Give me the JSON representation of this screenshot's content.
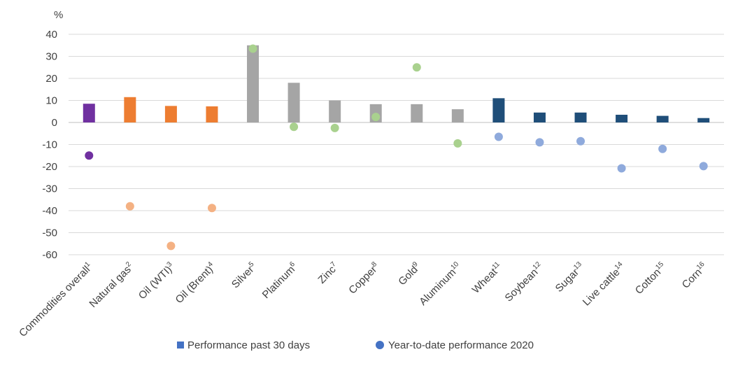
{
  "chart_data": {
    "type": "bar",
    "unit": "%",
    "ylim": [
      -60,
      40
    ],
    "ytick_step": 10,
    "grid": true,
    "legend_position": "bottom",
    "categories": [
      {
        "name": "Commodities overall",
        "sup": "1",
        "bar": 8.5,
        "dot": -15,
        "bar_color": "#7030a0",
        "dot_color": "#7030a0"
      },
      {
        "name": "Natural gas",
        "sup": "2",
        "bar": 11.5,
        "dot": -38,
        "bar_color": "#ed7d31",
        "dot_color": "#f4b183"
      },
      {
        "name": "Oil (WTI)",
        "sup": "3",
        "bar": 7.5,
        "dot": -56,
        "bar_color": "#ed7d31",
        "dot_color": "#f4b183"
      },
      {
        "name": "Oil (Brent)",
        "sup": "4",
        "bar": 7.3,
        "dot": -38.8,
        "bar_color": "#ed7d31",
        "dot_color": "#f4b183"
      },
      {
        "name": "Silver",
        "sup": "5",
        "bar": 35,
        "dot": 33.5,
        "bar_color": "#a5a5a5",
        "dot_color": "#a9d18e"
      },
      {
        "name": "Platinum",
        "sup": "6",
        "bar": 18,
        "dot": -2,
        "bar_color": "#a5a5a5",
        "dot_color": "#a9d18e"
      },
      {
        "name": "Zinc",
        "sup": "7",
        "bar": 10,
        "dot": -2.5,
        "bar_color": "#a5a5a5",
        "dot_color": "#a9d18e"
      },
      {
        "name": "Copper",
        "sup": "8",
        "bar": 8.3,
        "dot": 2.5,
        "bar_color": "#a5a5a5",
        "dot_color": "#a9d18e"
      },
      {
        "name": "Gold",
        "sup": "9",
        "bar": 8.3,
        "dot": 25,
        "bar_color": "#a5a5a5",
        "dot_color": "#a9d18e"
      },
      {
        "name": "Aluminum",
        "sup": "10",
        "bar": 6,
        "dot": -9.5,
        "bar_color": "#a5a5a5",
        "dot_color": "#a9d18e"
      },
      {
        "name": "Wheat",
        "sup": "11",
        "bar": 11,
        "dot": -6.5,
        "bar_color": "#1f4e79",
        "dot_color": "#8faadc"
      },
      {
        "name": "Soybean",
        "sup": "12",
        "bar": 4.5,
        "dot": -9,
        "bar_color": "#1f4e79",
        "dot_color": "#8faadc"
      },
      {
        "name": "Sugar",
        "sup": "13",
        "bar": 4.5,
        "dot": -8.5,
        "bar_color": "#1f4e79",
        "dot_color": "#8faadc"
      },
      {
        "name": "Live cattle",
        "sup": "14",
        "bar": 3.5,
        "dot": -20.8,
        "bar_color": "#1f4e79",
        "dot_color": "#8faadc"
      },
      {
        "name": "Cotton",
        "sup": "15",
        "bar": 3,
        "dot": -12,
        "bar_color": "#1f4e79",
        "dot_color": "#8faadc"
      },
      {
        "name": "Corn",
        "sup": "16",
        "bar": 2,
        "dot": -19.8,
        "bar_color": "#1f4e79",
        "dot_color": "#8faadc"
      }
    ],
    "legend": [
      {
        "label": "Performance past 30 days",
        "marker": "square",
        "color": "#4472c4"
      },
      {
        "label": "Year-to-date performance 2020",
        "marker": "circle",
        "color": "#4472c4"
      }
    ]
  }
}
